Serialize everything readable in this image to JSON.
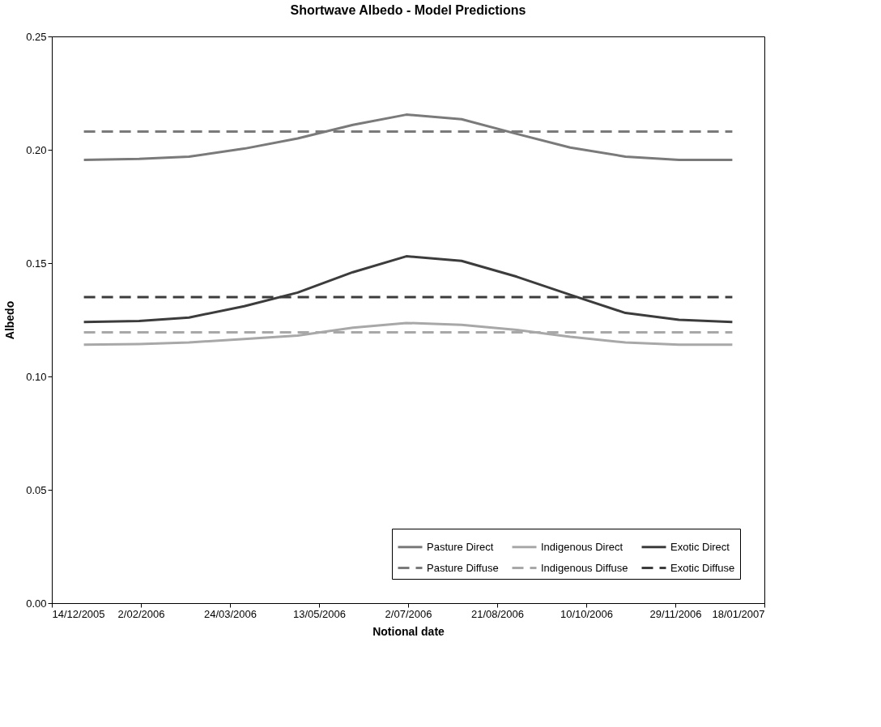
{
  "chart_data": {
    "type": "line",
    "title": "Shortwave Albedo - Model Predictions",
    "xlabel": "Notional date",
    "ylabel": "Albedo",
    "xlim": [
      "2005-12-14",
      "2007-01-18"
    ],
    "xticks": [
      {
        "value": "2005-12-14",
        "label": "14/12/2005"
      },
      {
        "value": "2006-02-02",
        "label": "2/02/2006"
      },
      {
        "value": "2006-03-24",
        "label": "24/03/2006"
      },
      {
        "value": "2006-05-13",
        "label": "13/05/2006"
      },
      {
        "value": "2006-07-02",
        "label": "2/07/2006"
      },
      {
        "value": "2006-08-21",
        "label": "21/08/2006"
      },
      {
        "value": "2006-10-10",
        "label": "10/10/2006"
      },
      {
        "value": "2006-11-29",
        "label": "29/11/2006"
      },
      {
        "value": "2007-01-18",
        "label": "18/01/2007"
      }
    ],
    "ylim": [
      0,
      0.25
    ],
    "yticks": [
      {
        "value": 0,
        "label": "0.00"
      },
      {
        "value": 0.05,
        "label": "0.05"
      },
      {
        "value": 0.1,
        "label": "0.10"
      },
      {
        "value": 0.15,
        "label": "0.15"
      },
      {
        "value": 0.2,
        "label": "0.20"
      },
      {
        "value": 0.25,
        "label": "0.25"
      }
    ],
    "grid": false,
    "legend": "bottom right",
    "marker": "none",
    "x": [
      "2006-01-01",
      "2006-02-01",
      "2006-03-01",
      "2006-04-01",
      "2006-05-01",
      "2006-06-01",
      "2006-07-01",
      "2006-08-01",
      "2006-09-01",
      "2006-10-01",
      "2006-11-01",
      "2006-12-01",
      "2006-12-31"
    ],
    "series": [
      {
        "name": "Pasture Direct",
        "color": "#7a7a7a",
        "line_style": "solid",
        "values": [
          0.1955,
          0.196,
          0.197,
          0.2005,
          0.205,
          0.211,
          0.2155,
          0.2135,
          0.207,
          0.201,
          0.197,
          0.1955,
          0.1955
        ]
      },
      {
        "name": "Indigenous Direct",
        "color": "#a8a8a8",
        "line_style": "solid",
        "values": [
          0.114,
          0.1143,
          0.115,
          0.1165,
          0.118,
          0.1215,
          0.1236,
          0.1228,
          0.1205,
          0.1175,
          0.115,
          0.114,
          0.114
        ]
      },
      {
        "name": "Exotic Direct",
        "color": "#3c3c3c",
        "line_style": "solid",
        "values": [
          0.124,
          0.1245,
          0.126,
          0.131,
          0.137,
          0.146,
          0.153,
          0.151,
          0.144,
          0.136,
          0.128,
          0.125,
          0.124
        ]
      },
      {
        "name": "Pasture Diffuse",
        "color": "#7a7a7a",
        "line_style": "dashed",
        "values": [
          0.208,
          0.208,
          0.208,
          0.208,
          0.208,
          0.208,
          0.208,
          0.208,
          0.208,
          0.208,
          0.208,
          0.208,
          0.208
        ]
      },
      {
        "name": "Indigenous Diffuse",
        "color": "#a8a8a8",
        "line_style": "dashed",
        "values": [
          0.1195,
          0.1195,
          0.1195,
          0.1195,
          0.1195,
          0.1195,
          0.1195,
          0.1195,
          0.1195,
          0.1195,
          0.1195,
          0.1195,
          0.1195
        ]
      },
      {
        "name": "Exotic Diffuse",
        "color": "#3c3c3c",
        "line_style": "dashed",
        "values": [
          0.135,
          0.135,
          0.135,
          0.135,
          0.135,
          0.135,
          0.135,
          0.135,
          0.135,
          0.135,
          0.135,
          0.135,
          0.135
        ]
      }
    ]
  }
}
